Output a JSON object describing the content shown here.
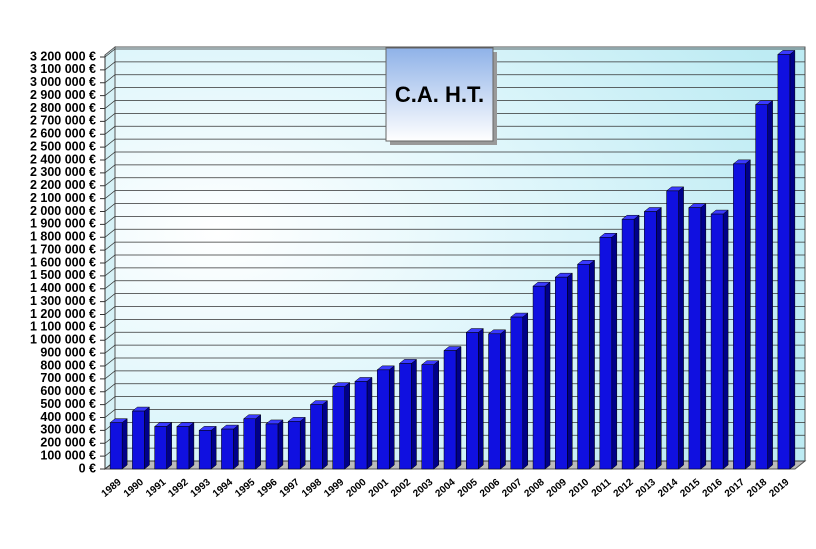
{
  "chart_data": {
    "type": "bar",
    "title": "C.A. H.T.",
    "categories": [
      "1989",
      "1990",
      "1991",
      "1992",
      "1993",
      "1994",
      "1995",
      "1996",
      "1997",
      "1998",
      "1999",
      "2000",
      "2001",
      "2002",
      "2003",
      "2004",
      "2005",
      "2006",
      "2007",
      "2008",
      "2009",
      "2010",
      "2011",
      "2012",
      "2013",
      "2014",
      "2015",
      "2016",
      "2017",
      "2018",
      "2019"
    ],
    "values": [
      360000,
      450000,
      330000,
      330000,
      300000,
      310000,
      390000,
      350000,
      370000,
      500000,
      640000,
      680000,
      770000,
      820000,
      810000,
      920000,
      1060000,
      1050000,
      1180000,
      1420000,
      1490000,
      1590000,
      1800000,
      1940000,
      2000000,
      2160000,
      2030000,
      1980000,
      2370000,
      2830000,
      3220000
    ],
    "color": "#1010e0",
    "ylim": [
      0,
      3200000
    ],
    "yticks": [
      {
        "value": 0,
        "label": "0 €"
      },
      {
        "value": 100000,
        "label": "100 000 €"
      },
      {
        "value": 200000,
        "label": "200 000 €"
      },
      {
        "value": 300000,
        "label": "300 000 €"
      },
      {
        "value": 400000,
        "label": "400 000 €"
      },
      {
        "value": 500000,
        "label": "500 000 €"
      },
      {
        "value": 600000,
        "label": "600 000 €"
      },
      {
        "value": 700000,
        "label": "700 000 €"
      },
      {
        "value": 800000,
        "label": "800 000 €"
      },
      {
        "value": 900000,
        "label": "900 000 €"
      },
      {
        "value": 1000000,
        "label": "1 000 000 €"
      },
      {
        "value": 1100000,
        "label": "1 100 000 €"
      },
      {
        "value": 1200000,
        "label": "1 200 000 €"
      },
      {
        "value": 1300000,
        "label": "1 300 000 €"
      },
      {
        "value": 1400000,
        "label": "1 400 000 €"
      },
      {
        "value": 1500000,
        "label": "1 500 000 €"
      },
      {
        "value": 1600000,
        "label": "1 600 000 €"
      },
      {
        "value": 1700000,
        "label": "1 700 000 €"
      },
      {
        "value": 1800000,
        "label": "1 800 000 €"
      },
      {
        "value": 1900000,
        "label": "1 900 000 €"
      },
      {
        "value": 2000000,
        "label": "2 000 000 €"
      },
      {
        "value": 2100000,
        "label": "2 100 000 €"
      },
      {
        "value": 2200000,
        "label": "2 200 000 €"
      },
      {
        "value": 2300000,
        "label": "2 300 000 €"
      },
      {
        "value": 2400000,
        "label": "2 400 000 €"
      },
      {
        "value": 2500000,
        "label": "2 500 000 €"
      },
      {
        "value": 2600000,
        "label": "2 600 000 €"
      },
      {
        "value": 2700000,
        "label": "2 700 000 €"
      },
      {
        "value": 2800000,
        "label": "2 800 000 €"
      },
      {
        "value": 2900000,
        "label": "2 900 000 €"
      },
      {
        "value": 3000000,
        "label": "3 000 000 €"
      },
      {
        "value": 3100000,
        "label": "3 100 000 €"
      },
      {
        "value": 3200000,
        "label": "3 200 000 €"
      }
    ],
    "grid": true
  }
}
